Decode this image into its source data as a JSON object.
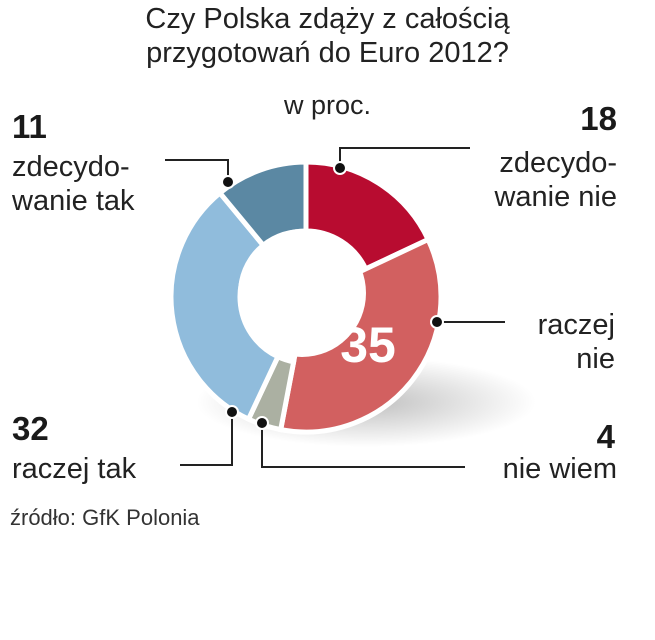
{
  "chart_data": {
    "type": "pie",
    "donut": true,
    "title": "Czy Polska zdąży z całością przygotowań do Euro 2012?",
    "subtitle": "w proc.",
    "source": "źródło: GfK Polonia",
    "slices": [
      {
        "label": "zdecydowanie nie",
        "label_lines": [
          "zdecydo-",
          "wanie nie"
        ],
        "value": 18,
        "color": "#b80c30"
      },
      {
        "label": "raczej nie",
        "label_lines": [
          "raczej",
          "nie"
        ],
        "value": 35,
        "color": "#d26060"
      },
      {
        "label": "nie wiem",
        "label_lines": [
          "nie wiem"
        ],
        "value": 4,
        "color": "#abb0a2"
      },
      {
        "label": "raczej tak",
        "label_lines": [
          "raczej tak"
        ],
        "value": 32,
        "color": "#90bcdc"
      },
      {
        "label": "zdecydowanie tak",
        "label_lines": [
          "zdecydo-",
          "wanie tak"
        ],
        "value": 11,
        "color": "#5b88a3"
      }
    ]
  }
}
